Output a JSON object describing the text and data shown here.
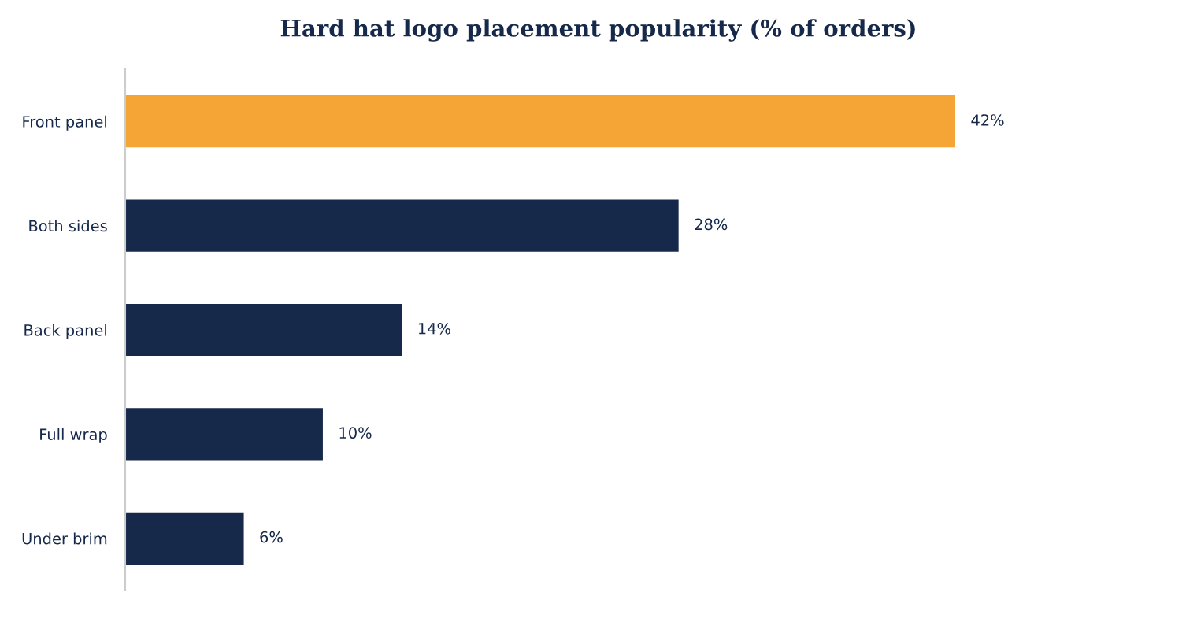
{
  "chart_data": {
    "type": "bar",
    "orientation": "horizontal",
    "title": "Hard hat logo placement popularity (% of orders)",
    "categories": [
      "Front panel",
      "Both sides",
      "Back panel",
      "Full wrap",
      "Under brim"
    ],
    "values": [
      42,
      28,
      14,
      10,
      6
    ],
    "colors": [
      "#f5a535",
      "#16294b",
      "#16294b",
      "#16294b",
      "#16294b"
    ],
    "value_labels": [
      "42%",
      "28%",
      "14%",
      "10%",
      "6%"
    ],
    "grid": false,
    "legend": false
  }
}
